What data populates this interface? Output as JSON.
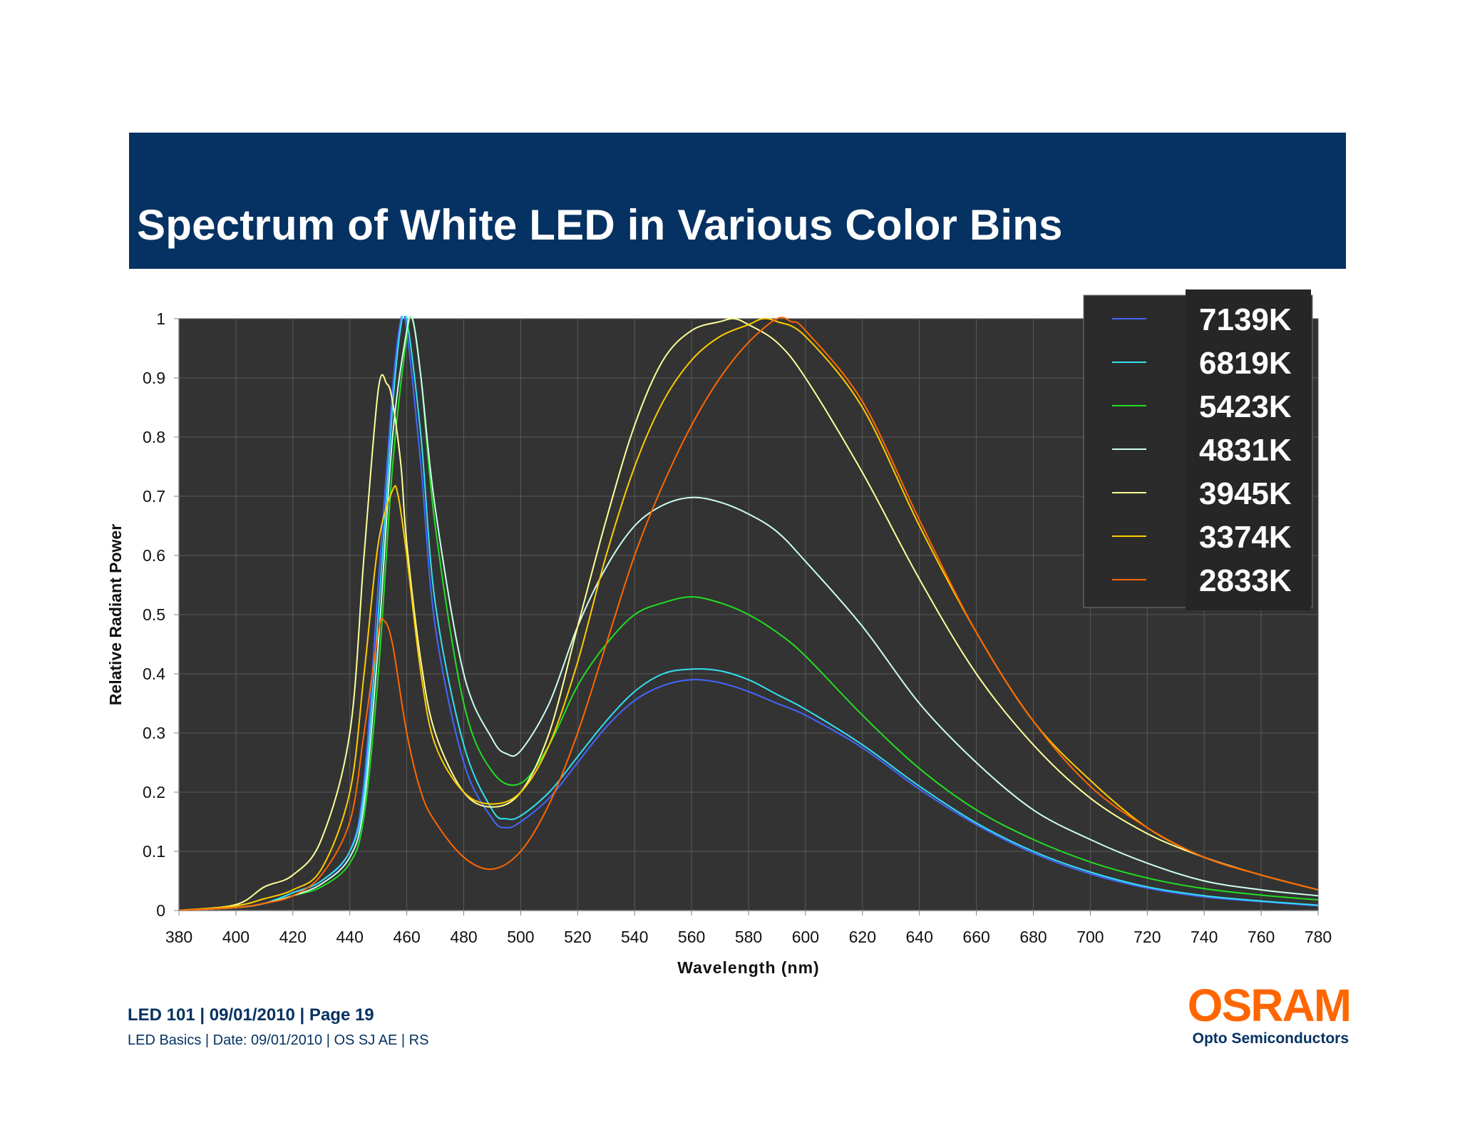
{
  "header": {
    "title": "Spectrum of White LED in Various Color Bins"
  },
  "footer": {
    "line1": "LED 101  |  09/01/2010 |  Page 19",
    "line2": "LED Basics | Date: 09/01/2010 | OS SJ AE | RS"
  },
  "logo": {
    "word": "OSRAM",
    "sub": "Opto Semiconductors",
    "color": "#ff6600"
  },
  "chart_data": {
    "type": "line",
    "title": "",
    "xlabel": "Wavelength (nm)",
    "ylabel": "Relative Radiant Power",
    "xlim": [
      380,
      780
    ],
    "ylim": [
      0,
      1
    ],
    "xticks": [
      380,
      400,
      420,
      440,
      460,
      480,
      500,
      520,
      540,
      560,
      580,
      600,
      620,
      640,
      660,
      680,
      700,
      720,
      740,
      760,
      780
    ],
    "yticks": [
      0,
      0.1,
      0.2,
      0.3,
      0.4,
      0.5,
      0.6,
      0.7,
      0.8,
      0.9,
      1
    ],
    "grid": true,
    "legend_position": "top-right",
    "background": "#333333",
    "series": [
      {
        "name": "7139K",
        "color": "#4466ff",
        "x": [
          380,
          400,
          410,
          420,
          430,
          440,
          445,
          450,
          455,
          458,
          460,
          465,
          470,
          480,
          490,
          495,
          500,
          510,
          520,
          530,
          540,
          550,
          560,
          570,
          580,
          590,
          600,
          620,
          640,
          660,
          680,
          700,
          720,
          740,
          760,
          780
        ],
        "y": [
          0,
          0.005,
          0.012,
          0.03,
          0.05,
          0.1,
          0.22,
          0.55,
          0.88,
          1.0,
          0.98,
          0.75,
          0.48,
          0.25,
          0.155,
          0.14,
          0.15,
          0.19,
          0.25,
          0.31,
          0.355,
          0.38,
          0.39,
          0.385,
          0.37,
          0.35,
          0.33,
          0.275,
          0.205,
          0.145,
          0.097,
          0.062,
          0.038,
          0.023,
          0.015,
          0.008
        ]
      },
      {
        "name": "6819K",
        "color": "#33e0f0",
        "x": [
          380,
          400,
          410,
          420,
          430,
          440,
          445,
          450,
          455,
          458,
          460,
          465,
          470,
          480,
          490,
          495,
          500,
          510,
          520,
          530,
          540,
          550,
          560,
          570,
          580,
          590,
          600,
          620,
          640,
          660,
          680,
          700,
          720,
          740,
          760,
          780
        ],
        "y": [
          0,
          0.005,
          0.012,
          0.03,
          0.05,
          0.1,
          0.2,
          0.5,
          0.85,
          0.99,
          1.0,
          0.8,
          0.52,
          0.28,
          0.17,
          0.155,
          0.16,
          0.2,
          0.26,
          0.32,
          0.37,
          0.4,
          0.408,
          0.405,
          0.39,
          0.365,
          0.34,
          0.28,
          0.21,
          0.148,
          0.1,
          0.065,
          0.04,
          0.025,
          0.016,
          0.009
        ]
      },
      {
        "name": "5423K",
        "color": "#22dd22",
        "x": [
          380,
          400,
          410,
          420,
          430,
          440,
          445,
          450,
          455,
          460,
          462,
          465,
          470,
          480,
          490,
          500,
          510,
          520,
          530,
          540,
          550,
          560,
          570,
          580,
          590,
          600,
          620,
          640,
          660,
          680,
          700,
          720,
          740,
          760,
          780
        ],
        "y": [
          0,
          0.005,
          0.012,
          0.025,
          0.04,
          0.08,
          0.16,
          0.4,
          0.75,
          0.97,
          1.0,
          0.9,
          0.65,
          0.35,
          0.235,
          0.215,
          0.28,
          0.38,
          0.45,
          0.5,
          0.52,
          0.53,
          0.52,
          0.5,
          0.47,
          0.43,
          0.33,
          0.24,
          0.17,
          0.12,
          0.082,
          0.055,
          0.037,
          0.026,
          0.018
        ]
      },
      {
        "name": "4831K",
        "color": "#ccffee",
        "x": [
          380,
          400,
          410,
          420,
          430,
          440,
          445,
          450,
          455,
          460,
          462,
          465,
          470,
          480,
          490,
          495,
          500,
          510,
          520,
          530,
          540,
          550,
          560,
          570,
          580,
          590,
          600,
          620,
          640,
          660,
          680,
          700,
          720,
          740,
          760,
          780
        ],
        "y": [
          0,
          0.005,
          0.012,
          0.025,
          0.045,
          0.09,
          0.18,
          0.45,
          0.8,
          0.98,
          1.0,
          0.9,
          0.68,
          0.4,
          0.29,
          0.265,
          0.27,
          0.35,
          0.48,
          0.58,
          0.65,
          0.685,
          0.698,
          0.69,
          0.67,
          0.64,
          0.59,
          0.48,
          0.35,
          0.25,
          0.17,
          0.12,
          0.08,
          0.05,
          0.035,
          0.025
        ]
      },
      {
        "name": "3945K",
        "color": "#ffff99",
        "x": [
          380,
          400,
          410,
          420,
          430,
          440,
          445,
          450,
          453,
          455,
          458,
          460,
          465,
          470,
          480,
          490,
          500,
          510,
          520,
          530,
          540,
          550,
          560,
          570,
          575,
          580,
          590,
          600,
          620,
          640,
          660,
          680,
          700,
          720,
          740,
          760,
          780
        ],
        "y": [
          0,
          0.01,
          0.04,
          0.06,
          0.12,
          0.3,
          0.6,
          0.88,
          0.89,
          0.86,
          0.75,
          0.62,
          0.42,
          0.3,
          0.2,
          0.175,
          0.2,
          0.3,
          0.48,
          0.66,
          0.82,
          0.93,
          0.98,
          0.995,
          1.0,
          0.99,
          0.96,
          0.9,
          0.74,
          0.56,
          0.4,
          0.28,
          0.19,
          0.13,
          0.09,
          0.06,
          0.035
        ]
      },
      {
        "name": "3374K",
        "color": "#ffcc00",
        "x": [
          380,
          400,
          410,
          420,
          430,
          440,
          445,
          450,
          455,
          457,
          460,
          465,
          470,
          480,
          490,
          500,
          510,
          520,
          530,
          540,
          550,
          560,
          570,
          580,
          585,
          590,
          600,
          620,
          640,
          660,
          680,
          700,
          720,
          740,
          760,
          780
        ],
        "y": [
          0,
          0.008,
          0.02,
          0.035,
          0.07,
          0.2,
          0.4,
          0.62,
          0.71,
          0.7,
          0.6,
          0.4,
          0.28,
          0.2,
          0.18,
          0.2,
          0.28,
          0.42,
          0.6,
          0.75,
          0.86,
          0.93,
          0.97,
          0.99,
          1.0,
          0.995,
          0.97,
          0.85,
          0.65,
          0.47,
          0.32,
          0.22,
          0.14,
          0.09,
          0.06,
          0.035
        ]
      },
      {
        "name": "2833K",
        "color": "#ff6600",
        "x": [
          380,
          400,
          410,
          420,
          430,
          440,
          445,
          450,
          452,
          455,
          460,
          465,
          470,
          480,
          490,
          500,
          510,
          520,
          530,
          540,
          550,
          560,
          570,
          580,
          590,
          595,
          600,
          620,
          640,
          660,
          680,
          700,
          720,
          740,
          760,
          780
        ],
        "y": [
          0,
          0.005,
          0.012,
          0.025,
          0.06,
          0.15,
          0.3,
          0.47,
          0.49,
          0.45,
          0.3,
          0.2,
          0.15,
          0.09,
          0.07,
          0.1,
          0.18,
          0.3,
          0.45,
          0.6,
          0.72,
          0.82,
          0.9,
          0.96,
          1.0,
          0.995,
          0.98,
          0.86,
          0.66,
          0.47,
          0.32,
          0.21,
          0.14,
          0.09,
          0.06,
          0.035
        ]
      }
    ]
  }
}
